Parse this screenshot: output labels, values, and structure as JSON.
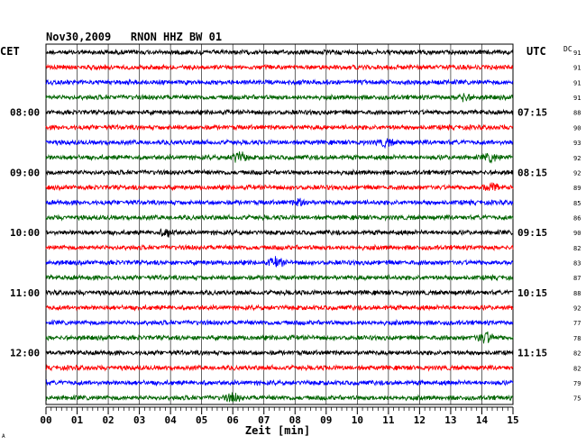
{
  "chart_data": {
    "type": "line",
    "title": "Nov30,2009   RNON HHZ BW 01",
    "xlabel": "Zeit [min]",
    "left_axis_label": "CET",
    "right_axis_label": "UTC",
    "dc_header": "DC",
    "x_range": [
      0,
      15
    ],
    "x_tick_labels": [
      "00",
      "01",
      "02",
      "03",
      "04",
      "05",
      "06",
      "07",
      "08",
      "09",
      "10",
      "11",
      "12",
      "13",
      "14",
      "15"
    ],
    "grid": true,
    "left_hour_labels": [
      {
        "trace_index": 4,
        "label": "08:00"
      },
      {
        "trace_index": 8,
        "label": "09:00"
      },
      {
        "trace_index": 12,
        "label": "10:00"
      },
      {
        "trace_index": 16,
        "label": "11:00"
      },
      {
        "trace_index": 20,
        "label": "12:00"
      }
    ],
    "right_hour_labels": [
      {
        "trace_index": 4,
        "label": "07:15"
      },
      {
        "trace_index": 8,
        "label": "08:15"
      },
      {
        "trace_index": 12,
        "label": "09:15"
      },
      {
        "trace_index": 16,
        "label": "10:15"
      },
      {
        "trace_index": 20,
        "label": "11:15"
      }
    ],
    "colors": [
      "#000000",
      "#ff0000",
      "#0000ff",
      "#006400"
    ],
    "dc_values": [
      "91",
      "91",
      "91",
      "91",
      "88",
      "90",
      "93",
      "92",
      "92",
      "89",
      "85",
      "86",
      "90",
      "82",
      "83",
      "87",
      "88",
      "92",
      "77",
      "78",
      "82",
      "82",
      "79",
      "75"
    ],
    "events": [
      {
        "trace_index": 7,
        "minute": 6.2,
        "strength": 2.2
      },
      {
        "trace_index": 7,
        "minute": 14.3,
        "strength": 1.6
      },
      {
        "trace_index": 3,
        "minute": 13.4,
        "strength": 1.5
      },
      {
        "trace_index": 10,
        "minute": 8.2,
        "strength": 1.3
      },
      {
        "trace_index": 14,
        "minute": 7.4,
        "strength": 1.7
      },
      {
        "trace_index": 19,
        "minute": 14.1,
        "strength": 2.4
      },
      {
        "trace_index": 12,
        "minute": 3.9,
        "strength": 1.4
      },
      {
        "trace_index": 6,
        "minute": 10.9,
        "strength": 1.4
      },
      {
        "trace_index": 23,
        "minute": 6.0,
        "strength": 1.5
      },
      {
        "trace_index": 9,
        "minute": 14.3,
        "strength": 1.4
      }
    ]
  },
  "corner_mark": "A"
}
